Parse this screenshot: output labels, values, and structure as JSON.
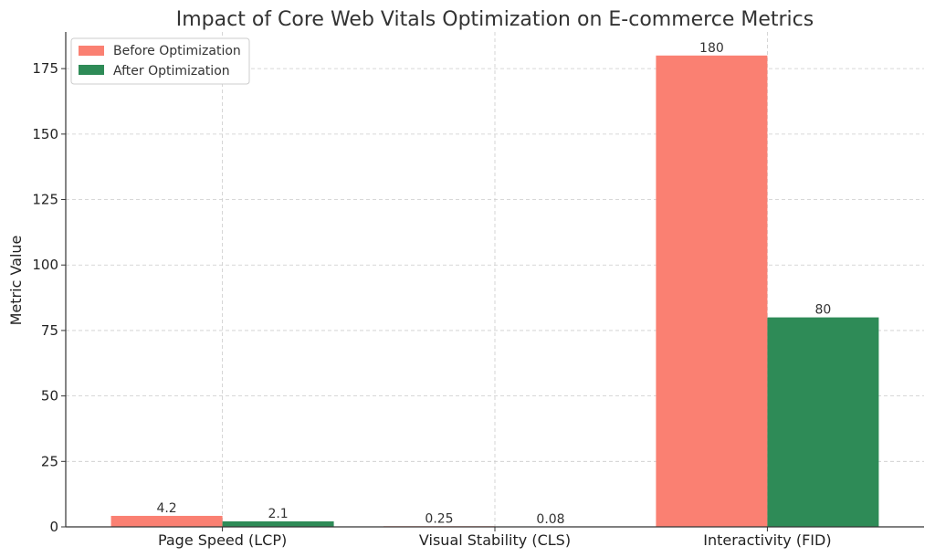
{
  "chart_data": {
    "type": "bar",
    "title": "Impact of Core Web Vitals Optimization on E-commerce Metrics",
    "xlabel": "",
    "ylabel": "Metric Value",
    "categories": [
      "Page Speed (LCP)",
      "Visual Stability (CLS)",
      "Interactivity (FID)"
    ],
    "series": [
      {
        "name": "Before Optimization",
        "color": "#fa8072",
        "values": [
          4.2,
          0.25,
          180
        ],
        "labels": [
          "4.2",
          "0.25",
          "180"
        ]
      },
      {
        "name": "After Optimization",
        "color": "#2e8b57",
        "values": [
          2.1,
          0.08,
          80
        ],
        "labels": [
          "2.1",
          "0.08",
          "80"
        ]
      }
    ],
    "ylim": [
      0,
      189
    ],
    "yticks": [
      0,
      25,
      50,
      75,
      100,
      125,
      150,
      175
    ],
    "grid": true,
    "legend_position": "top-left"
  }
}
